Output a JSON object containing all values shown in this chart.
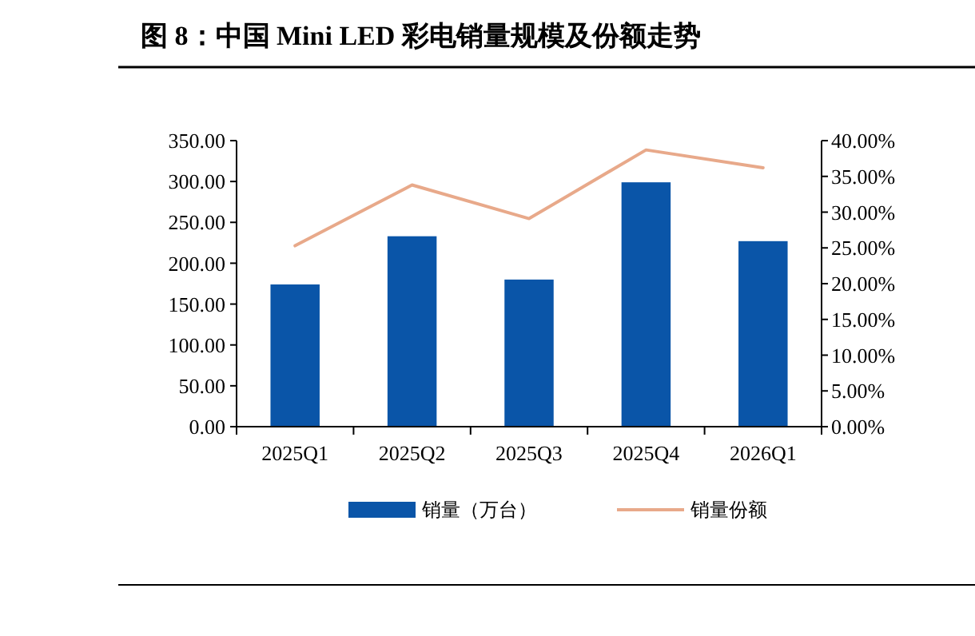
{
  "chart_data": {
    "type": "bar",
    "title": "图 8：中国 Mini LED 彩电销量规模及份额走势",
    "categories": [
      "2025Q1",
      "2025Q2",
      "2025Q3",
      "2025Q4",
      "2026Q1"
    ],
    "series": [
      {
        "name": "销量（万台）",
        "color": "#0a55a8",
        "values": [
          174,
          233,
          180,
          299,
          227
        ]
      },
      {
        "name": "销量份额",
        "type": "line",
        "axis": "y2",
        "color": "#e8a98a",
        "values": [
          25.3,
          33.8,
          29.1,
          38.7,
          36.2
        ]
      }
    ],
    "ylim": [
      0,
      350
    ],
    "yticks": [
      {
        "value": 0,
        "label": "0.00"
      },
      {
        "value": 50,
        "label": "50.00"
      },
      {
        "value": 100,
        "label": "100.00"
      },
      {
        "value": 150,
        "label": "150.00"
      },
      {
        "value": 200,
        "label": "200.00"
      },
      {
        "value": 250,
        "label": "250.00"
      },
      {
        "value": 300,
        "label": "300.00"
      },
      {
        "value": 350,
        "label": "350.00"
      }
    ],
    "y2lim": [
      0,
      40
    ],
    "y2ticks": [
      {
        "value": 0,
        "label": "0.00%"
      },
      {
        "value": 5,
        "label": "5.00%"
      },
      {
        "value": 10,
        "label": "10.00%"
      },
      {
        "value": 15,
        "label": "15.00%"
      },
      {
        "value": 20,
        "label": "20.00%"
      },
      {
        "value": 25,
        "label": "25.00%"
      },
      {
        "value": 30,
        "label": "30.00%"
      },
      {
        "value": 35,
        "label": "35.00%"
      },
      {
        "value": 40,
        "label": "40.00%"
      }
    ],
    "legend": "bottom",
    "grid": false
  }
}
